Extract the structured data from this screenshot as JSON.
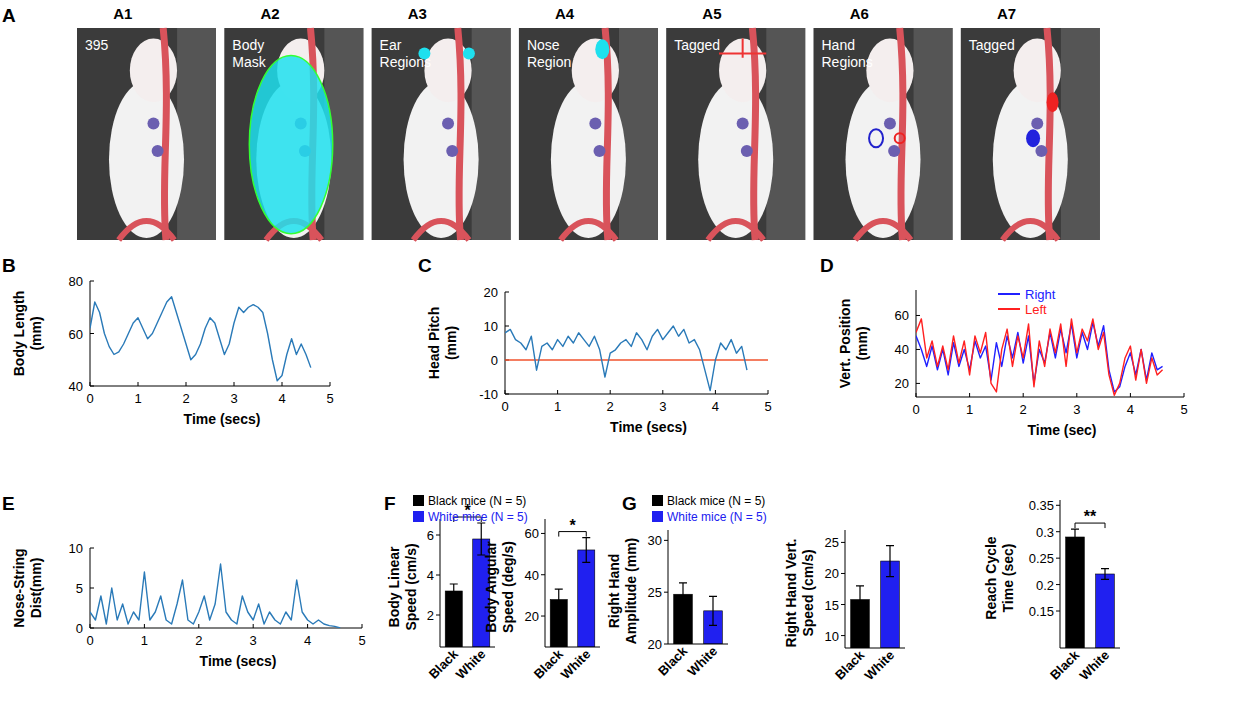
{
  "image_panel": {
    "panel": "A",
    "items": [
      {
        "label": "A1",
        "caption": "395"
      },
      {
        "label": "A2",
        "caption": "Body Mask"
      },
      {
        "label": "A3",
        "caption": "Ear Regions"
      },
      {
        "label": "A4",
        "caption": "Nose Region"
      },
      {
        "label": "A5",
        "caption": "Tagged"
      },
      {
        "label": "A6",
        "caption": "Hand Regions"
      },
      {
        "label": "A7",
        "caption": "Tagged"
      }
    ]
  },
  "chart_data": [
    {
      "type": "line",
      "panel": "B",
      "xlabel": "Time (secs)",
      "ylabel": "Body Length (mm)",
      "color": "#2a7ab8",
      "x": [
        0,
        0.1,
        0.2,
        0.3,
        0.4,
        0.5,
        0.6,
        0.7,
        0.8,
        0.9,
        1,
        1.1,
        1.2,
        1.3,
        1.4,
        1.5,
        1.6,
        1.7,
        1.8,
        1.9,
        2,
        2.1,
        2.2,
        2.3,
        2.4,
        2.5,
        2.6,
        2.7,
        2.8,
        2.9,
        3,
        3.1,
        3.2,
        3.3,
        3.4,
        3.5,
        3.6,
        3.7,
        3.8,
        3.9,
        4,
        4.1,
        4.2,
        4.3,
        4.4,
        4.5,
        4.6
      ],
      "values": [
        62,
        72,
        68,
        60,
        55,
        52,
        53,
        56,
        60,
        64,
        66,
        62,
        58,
        60,
        64,
        68,
        72,
        74,
        68,
        62,
        56,
        50,
        52,
        56,
        62,
        66,
        64,
        58,
        52,
        56,
        64,
        70,
        68,
        70,
        71,
        70,
        68,
        60,
        50,
        42,
        44,
        52,
        58,
        52,
        56,
        52,
        47
      ],
      "xlim": [
        0,
        5
      ],
      "xticks": [
        0,
        1,
        2,
        3,
        4,
        5
      ],
      "ylim": [
        40,
        80
      ],
      "yticks": [
        40,
        60,
        80
      ],
      "grid": false
    },
    {
      "type": "line",
      "panel": "C",
      "xlabel": "Time (secs)",
      "ylabel": "Head Pitch (mm)",
      "color": "#2a7ab8",
      "x": [
        0,
        0.1,
        0.2,
        0.3,
        0.4,
        0.5,
        0.6,
        0.7,
        0.8,
        0.9,
        1,
        1.1,
        1.2,
        1.3,
        1.4,
        1.5,
        1.6,
        1.7,
        1.8,
        1.9,
        2,
        2.1,
        2.2,
        2.3,
        2.4,
        2.5,
        2.6,
        2.7,
        2.8,
        2.9,
        3,
        3.1,
        3.2,
        3.3,
        3.4,
        3.5,
        3.6,
        3.7,
        3.8,
        3.9,
        4,
        4.1,
        4.2,
        4.3,
        4.4,
        4.5,
        4.6
      ],
      "values": [
        8,
        9,
        6,
        5,
        3,
        7,
        -3,
        4,
        5,
        3,
        6,
        4,
        7,
        5,
        8,
        6,
        4,
        7,
        3,
        -5,
        2,
        3,
        5,
        6,
        4,
        8,
        6,
        3,
        7,
        9,
        6,
        8,
        10,
        7,
        9,
        5,
        6,
        3,
        -3,
        -9,
        0,
        5,
        3,
        6,
        2,
        4,
        -3
      ],
      "reference_line": {
        "value": 0,
        "color": "#f0522d"
      },
      "xlim": [
        0,
        5
      ],
      "xticks": [
        0,
        1,
        2,
        3,
        4,
        5
      ],
      "ylim": [
        -10,
        20
      ],
      "yticks": [
        -10,
        0,
        10,
        20
      ],
      "grid": false
    },
    {
      "type": "line",
      "panel": "D",
      "xlabel": "Time (sec)",
      "ylabel": "Vert. Position (mm)",
      "legend": "top",
      "x": [
        0,
        0.1,
        0.2,
        0.3,
        0.4,
        0.5,
        0.6,
        0.7,
        0.8,
        0.9,
        1,
        1.1,
        1.2,
        1.3,
        1.4,
        1.5,
        1.6,
        1.7,
        1.8,
        1.9,
        2,
        2.1,
        2.2,
        2.3,
        2.4,
        2.5,
        2.6,
        2.7,
        2.8,
        2.9,
        3,
        3.1,
        3.2,
        3.3,
        3.4,
        3.5,
        3.6,
        3.7,
        3.8,
        3.9,
        4,
        4.1,
        4.2,
        4.3,
        4.4,
        4.5,
        4.6
      ],
      "series": [
        {
          "name": "Right",
          "color": "#2020ff",
          "values": [
            48,
            40,
            30,
            42,
            28,
            40,
            25,
            44,
            30,
            40,
            28,
            45,
            35,
            42,
            22,
            44,
            30,
            48,
            35,
            50,
            32,
            48,
            20,
            40,
            32,
            50,
            35,
            52,
            38,
            55,
            35,
            50,
            40,
            56,
            42,
            54,
            28,
            15,
            18,
            30,
            38,
            25,
            40,
            22,
            38,
            28,
            30
          ]
        },
        {
          "name": "Left",
          "color": "#ff2020",
          "values": [
            50,
            58,
            35,
            45,
            30,
            42,
            28,
            48,
            32,
            45,
            25,
            48,
            38,
            50,
            20,
            15,
            40,
            52,
            30,
            48,
            35,
            55,
            18,
            45,
            30,
            52,
            38,
            55,
            30,
            58,
            38,
            52,
            45,
            58,
            40,
            50,
            25,
            13,
            20,
            35,
            42,
            22,
            40,
            20,
            35,
            25,
            28
          ]
        }
      ],
      "xlim": [
        0,
        5
      ],
      "xticks": [
        0,
        1,
        2,
        3,
        4,
        5
      ],
      "ylim": [
        12,
        75
      ],
      "yticks": [
        20,
        40,
        60
      ],
      "grid": false
    },
    {
      "type": "line",
      "panel": "E",
      "xlabel": "Time (secs)",
      "ylabel": "Nose-String Dist(mm)",
      "color": "#2a7ab8",
      "x": [
        0,
        0.1,
        0.2,
        0.3,
        0.4,
        0.5,
        0.6,
        0.7,
        0.8,
        0.9,
        1,
        1.1,
        1.2,
        1.3,
        1.4,
        1.5,
        1.6,
        1.7,
        1.8,
        1.9,
        2,
        2.1,
        2.2,
        2.3,
        2.4,
        2.5,
        2.6,
        2.7,
        2.8,
        2.9,
        3,
        3.1,
        3.2,
        3.3,
        3.4,
        3.5,
        3.6,
        3.7,
        3.8,
        3.9,
        4,
        4.1,
        4.2,
        4.3,
        4.4,
        4.5,
        4.6
      ],
      "values": [
        2,
        1,
        4,
        0.5,
        5,
        1,
        3,
        0.5,
        2,
        1,
        7,
        1,
        2,
        4,
        1,
        0.5,
        3,
        6,
        1,
        0.5,
        2,
        4,
        1,
        3,
        8,
        2,
        1,
        0.5,
        4,
        2,
        1,
        3,
        0.5,
        2,
        1,
        0.5,
        2,
        1,
        6,
        2,
        1,
        0.5,
        1,
        0.5,
        0.3,
        0.2,
        0
      ],
      "xlim": [
        0,
        5
      ],
      "xticks": [
        0,
        1,
        2,
        3,
        4,
        5
      ],
      "ylim": [
        0,
        10
      ],
      "yticks": [
        0,
        5,
        10
      ],
      "grid": false
    },
    {
      "type": "bar",
      "panel": "F",
      "ylabel": "Body Linear Speed (cm/s)",
      "legend": "top",
      "legend_entries": [
        "Black mice (N = 5)",
        "White mice (N = 5)"
      ],
      "categories": [
        "Black",
        "White"
      ],
      "values": [
        3.2,
        5.8
      ],
      "errors": [
        0.35,
        0.8
      ],
      "colors": [
        "#000000",
        "#2020f0"
      ],
      "annotation": "*",
      "ylim": [
        0.4,
        6.8
      ],
      "yticks": [
        2,
        4,
        6
      ],
      "grid": false
    },
    {
      "type": "bar",
      "ylabel": "Body Angular Speed (deg/s)",
      "categories": [
        "Black",
        "White"
      ],
      "values": [
        28,
        52
      ],
      "errors": [
        5,
        6
      ],
      "colors": [
        "#000000",
        "#2020f0"
      ],
      "annotation": "*",
      "ylim": [
        5,
        67
      ],
      "yticks": [
        20,
        40,
        60
      ],
      "grid": false
    },
    {
      "type": "bar",
      "panel": "G",
      "ylabel": "Right Hand Amplitude (mm)",
      "legend": "top",
      "legend_entries": [
        "Black mice (N = 5)",
        "White mice (N = 5)"
      ],
      "categories": [
        "Black",
        "White"
      ],
      "values": [
        24.8,
        23.2
      ],
      "errors": [
        1.1,
        1.4
      ],
      "colors": [
        "#000000",
        "#2020f0"
      ],
      "ylim": [
        20,
        31
      ],
      "yticks": [
        20,
        25,
        30
      ],
      "grid": false
    },
    {
      "type": "bar",
      "ylabel": "Right Hand Vert. Speed (cm/s)",
      "categories": [
        "Black",
        "White"
      ],
      "values": [
        15.8,
        22
      ],
      "errors": [
        2.2,
        2.5
      ],
      "colors": [
        "#000000",
        "#2020f0"
      ],
      "ylim": [
        8,
        27
      ],
      "yticks": [
        10,
        15,
        20,
        25
      ],
      "grid": false
    },
    {
      "type": "bar",
      "ylabel": "Reach Cycle Time (sec)",
      "categories": [
        "Black",
        "White"
      ],
      "values": [
        0.29,
        0.22
      ],
      "errors": [
        0.015,
        0.01
      ],
      "colors": [
        "#000000",
        "#2020f0"
      ],
      "annotation": "**",
      "ylim": [
        0.08,
        0.36
      ],
      "yticks": [
        0.15,
        0.2,
        0.25,
        0.3,
        0.35
      ],
      "grid": false
    }
  ]
}
